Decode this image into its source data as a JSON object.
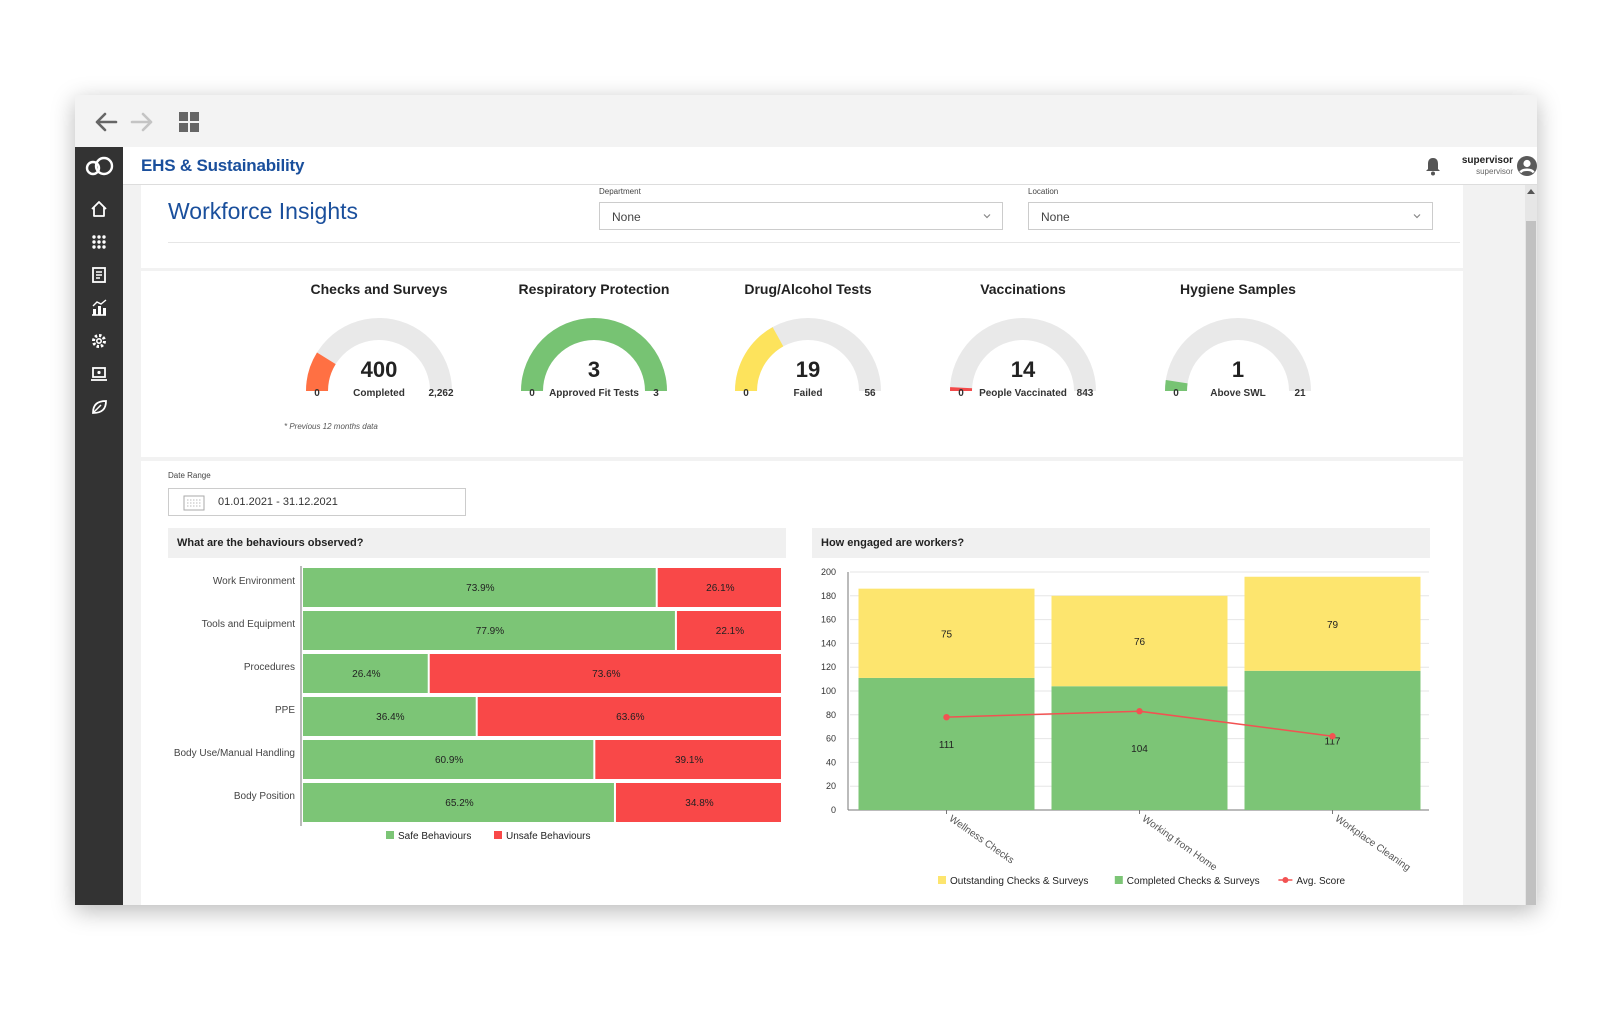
{
  "app": {
    "title": "EHS & Sustainability"
  },
  "user": {
    "name": "supervisor",
    "role": "supervisor"
  },
  "page": {
    "title": "Workforce Insights"
  },
  "filters": {
    "department": {
      "label": "Department",
      "value": "None"
    },
    "location": {
      "label": "Location",
      "value": "None"
    }
  },
  "gauges": [
    {
      "title": "Checks and Surveys",
      "value": "400",
      "label": "Completed",
      "min": "0",
      "max": "2,262",
      "fraction": 0.177,
      "color": "#ff7043"
    },
    {
      "title": "Respiratory Protection",
      "value": "3",
      "label": "Approved Fit Tests",
      "min": "0",
      "max": "3",
      "fraction": 1.0,
      "color": "#77c373"
    },
    {
      "title": "Drug/Alcohol Tests",
      "value": "19",
      "label": "Failed",
      "min": "0",
      "max": "56",
      "fraction": 0.339,
      "color": "#fde35c"
    },
    {
      "title": "Vaccinations",
      "value": "14",
      "label": "People Vaccinated",
      "min": "0",
      "max": "843",
      "fraction": 0.017,
      "color": "#f34a4a"
    },
    {
      "title": "Hygiene Samples",
      "value": "1",
      "label": "Above SWL",
      "min": "0",
      "max": "21",
      "fraction": 0.048,
      "color": "#77c373"
    }
  ],
  "note": "* Previous 12 months data",
  "date_range": {
    "label": "Date Range",
    "value": "01.01.2021 - 31.12.2021"
  },
  "colors": {
    "safe": "#7cc576",
    "unsafe": "#f94848",
    "outstanding": "#fde56e",
    "completed": "#7cc576",
    "avg": "#f25252"
  },
  "chart_data": [
    {
      "type": "bar",
      "orientation": "horizontal",
      "stacked": "percent",
      "title": "What are the behaviours observed?",
      "categories": [
        "Work Environment",
        "Tools and Equipment",
        "Procedures",
        "PPE",
        "Body Use/Manual Handling",
        "Body Position"
      ],
      "series": [
        {
          "name": "Safe Behaviours",
          "values": [
            73.9,
            77.9,
            26.4,
            36.4,
            60.9,
            65.2
          ],
          "labels": [
            "73.9%",
            "77.9%",
            "26.4%",
            "36.4%",
            "60.9%",
            "65.2%"
          ]
        },
        {
          "name": "Unsafe Behaviours",
          "values": [
            26.1,
            22.1,
            73.6,
            63.6,
            39.1,
            34.8
          ],
          "labels": [
            "26.1%",
            "22.1%",
            "73.6%",
            "63.6%",
            "39.1%",
            "34.8%"
          ]
        }
      ],
      "legend": "bottom"
    },
    {
      "type": "bar",
      "stacked": true,
      "title": "How engaged are workers?",
      "categories": [
        "Wellness Checks",
        "Working from Home",
        "Workplace Cleaning"
      ],
      "series": [
        {
          "name": "Completed Checks & Surveys",
          "values": [
            111,
            104,
            117
          ],
          "labels": [
            "111",
            "104",
            "117"
          ]
        },
        {
          "name": "Outstanding Checks & Surveys",
          "values": [
            75,
            76,
            79
          ],
          "labels": [
            "75",
            "76",
            "79"
          ]
        },
        {
          "name": "Avg. Score",
          "type": "line",
          "values": [
            78,
            83,
            62
          ]
        }
      ],
      "ylim": [
        0,
        200
      ],
      "yticks": [
        "200",
        "180",
        "160",
        "140",
        "120",
        "100",
        "80",
        "60",
        "40",
        "20",
        "0"
      ],
      "legend": [
        "Outstanding Checks & Surveys",
        "Completed Checks & Surveys",
        "Avg. Score"
      ],
      "legend_position": "bottom",
      "grid": true
    }
  ]
}
